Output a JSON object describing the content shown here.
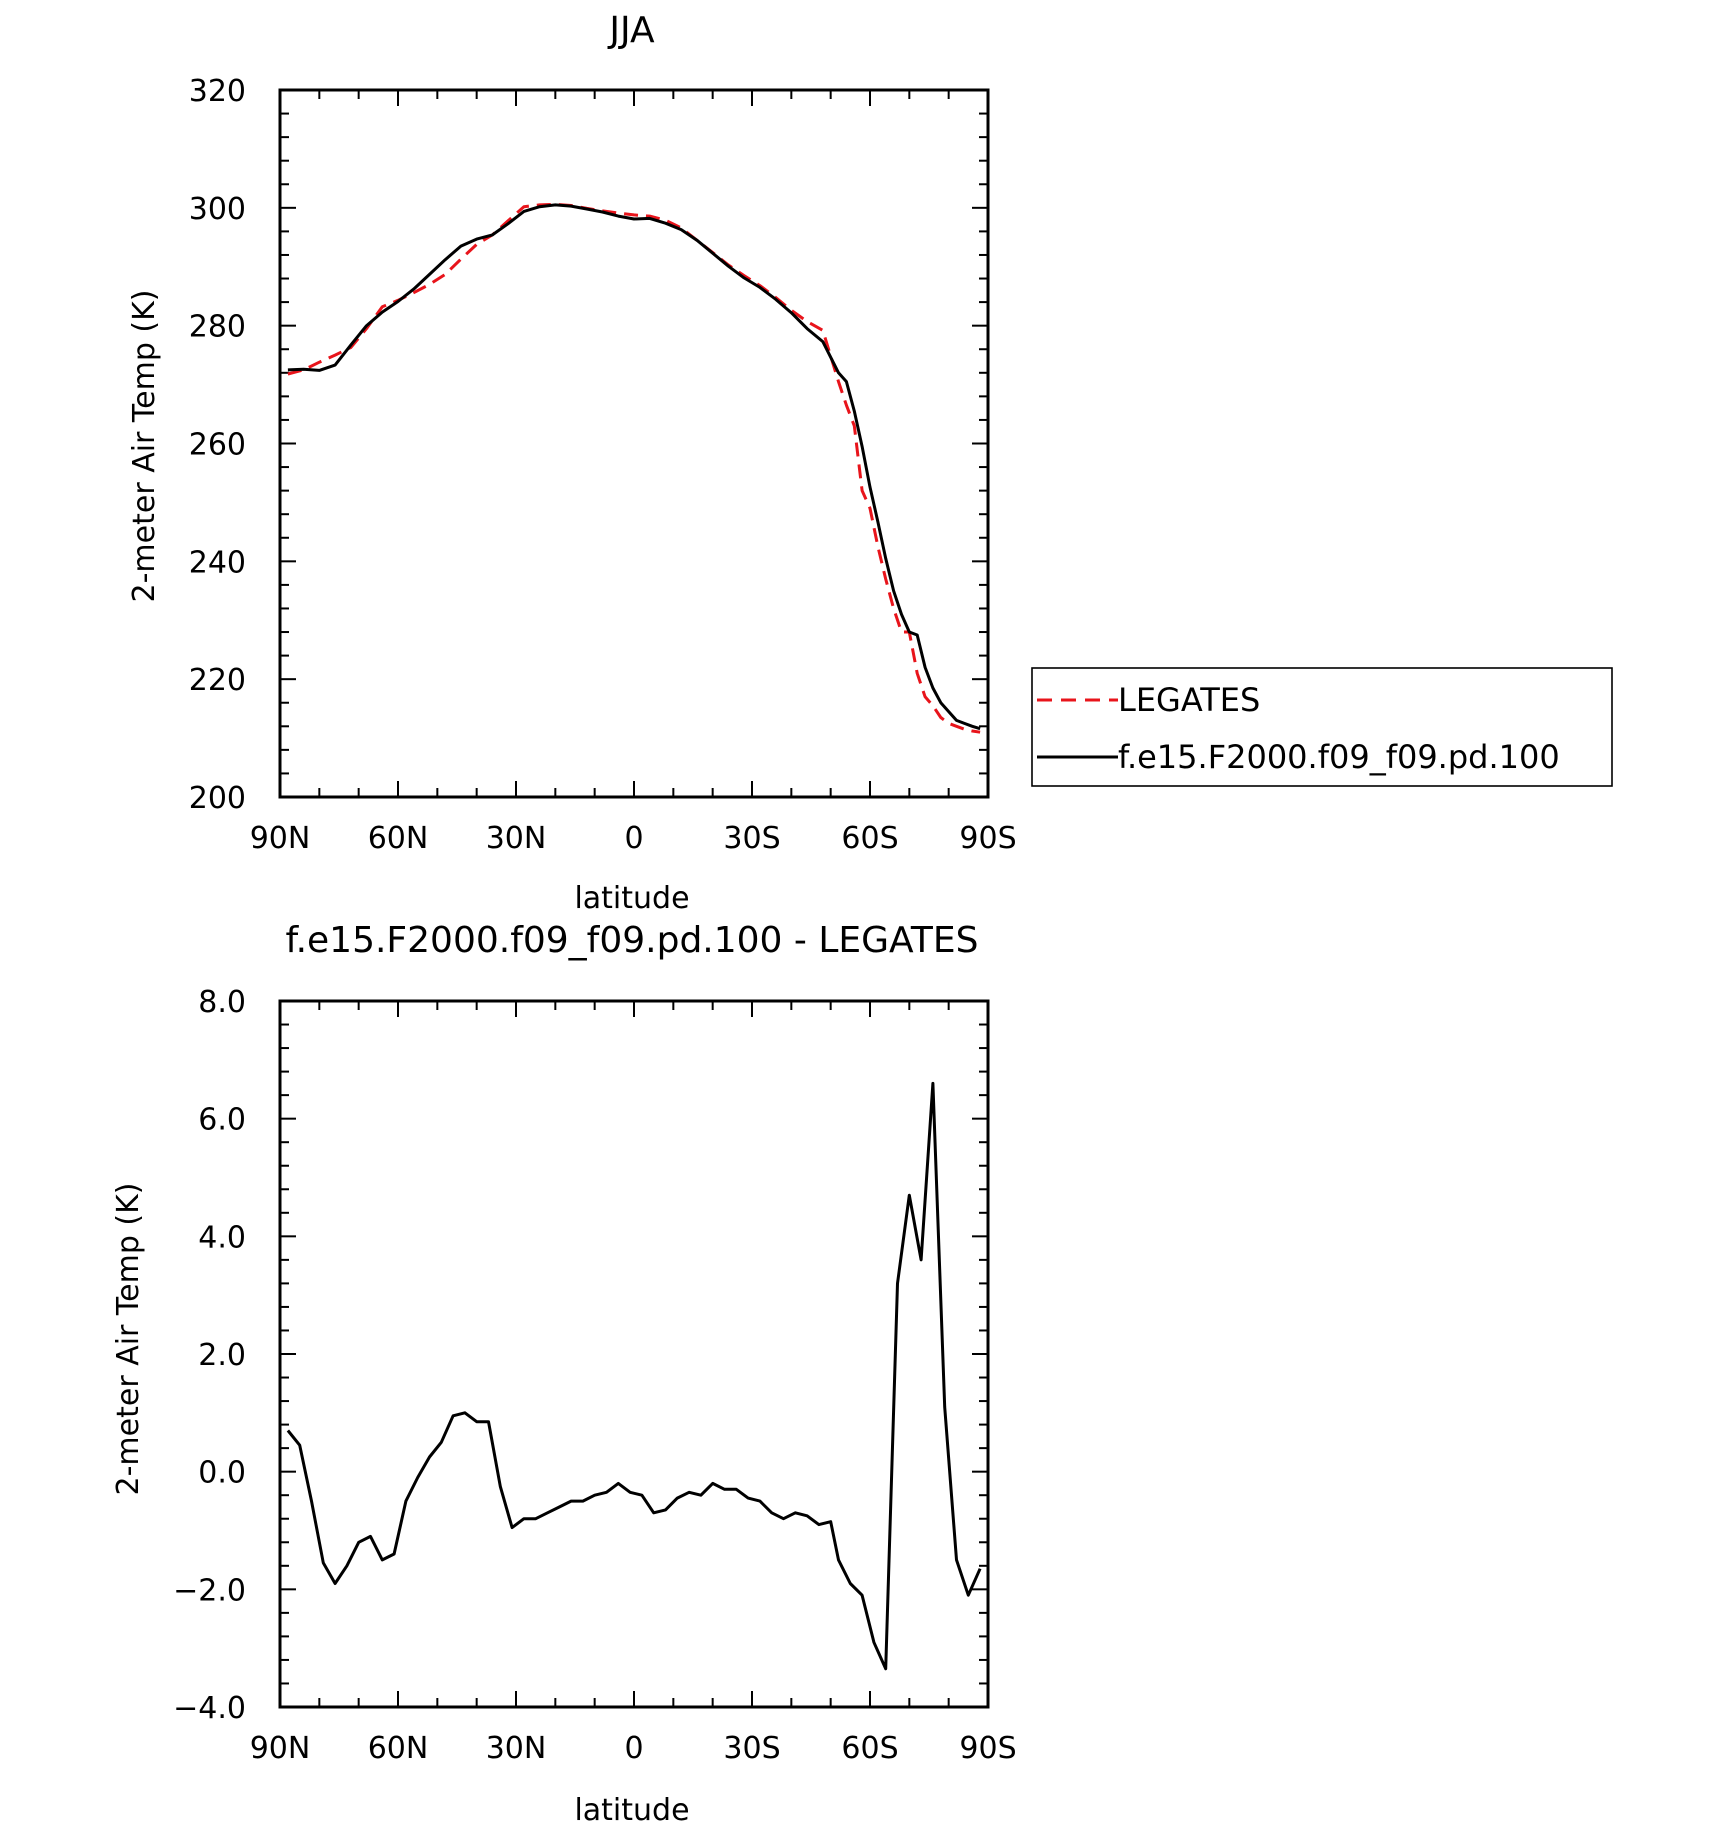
{
  "chart_data": [
    {
      "type": "line",
      "title": "JJA",
      "xlabel": "latitude",
      "ylabel": "2-meter Air Temp (K)",
      "xlim": [
        90,
        -90
      ],
      "ylim": [
        200,
        320
      ],
      "x_ticks": [
        90,
        60,
        30,
        0,
        -30,
        -60,
        -90
      ],
      "x_tick_labels": [
        "90N",
        "60N",
        "30N",
        "0",
        "30S",
        "60S",
        "90S"
      ],
      "y_ticks": [
        200,
        220,
        240,
        260,
        280,
        300,
        320
      ],
      "y_tick_labels": [
        "200",
        "220",
        "240",
        "260",
        "280",
        "300",
        "320"
      ],
      "legend_position": "right",
      "series": [
        {
          "name": "LEGATES",
          "color": "#e8141b",
          "dash": "dashed",
          "x": [
            88,
            84,
            80,
            76,
            72,
            68,
            64,
            60,
            56,
            52,
            48,
            44,
            40,
            36,
            32,
            28,
            24,
            20,
            16,
            12,
            8,
            4,
            0,
            -4,
            -8,
            -12,
            -16,
            -20,
            -24,
            -28,
            -32,
            -36,
            -40,
            -44,
            -48,
            -52,
            -54,
            -56,
            -58,
            -60,
            -62,
            -64,
            -66,
            -68,
            -70,
            -72,
            -74,
            -76,
            -78,
            -80,
            -82,
            -84,
            -86,
            -88
          ],
          "values": [
            271.8,
            272.5,
            273.8,
            275,
            276.3,
            279.5,
            283.2,
            284.3,
            285.6,
            287,
            288.7,
            291.3,
            293.8,
            295.4,
            297.8,
            300.2,
            300.5,
            300.6,
            300.4,
            299.9,
            299.5,
            299.1,
            298.8,
            298.6,
            297.9,
            296.6,
            294.5,
            292.4,
            290.3,
            288.5,
            286.8,
            284.8,
            282.6,
            280.7,
            279.2,
            270.5,
            266.5,
            263,
            252,
            249,
            242.5,
            237,
            232,
            228,
            228,
            221,
            217,
            215.5,
            213.5,
            212.5,
            212,
            211.5,
            211.2,
            211
          ]
        },
        {
          "name": "f.e15.F2000.f09_f09.pd.100",
          "color": "#000000",
          "dash": "solid",
          "x": [
            88,
            84,
            80,
            76,
            72,
            68,
            64,
            60,
            56,
            52,
            48,
            44,
            40,
            36,
            32,
            28,
            24,
            20,
            16,
            12,
            8,
            4,
            0,
            -4,
            -8,
            -12,
            -16,
            -20,
            -24,
            -28,
            -32,
            -36,
            -40,
            -44,
            -48,
            -52,
            -54,
            -56,
            -58,
            -60,
            -62,
            -64,
            -66,
            -68,
            -70,
            -72,
            -74,
            -76,
            -78,
            -80,
            -82,
            -84,
            -86,
            -88
          ],
          "values": [
            272.5,
            272.6,
            272.4,
            273.3,
            276.7,
            280,
            282.3,
            284.1,
            286.2,
            288.7,
            291.2,
            293.5,
            294.7,
            295.4,
            297.3,
            299.4,
            300.2,
            300.5,
            300.3,
            299.8,
            299.3,
            298.6,
            298.1,
            298.2,
            297.4,
            296.3,
            294.5,
            292.3,
            290.1,
            288.1,
            286.5,
            284.5,
            282.2,
            279.5,
            277.3,
            272,
            270.5,
            265.5,
            259.5,
            252.6,
            246.7,
            240.5,
            235,
            231,
            228,
            227.5,
            222,
            218.5,
            216,
            214.5,
            213,
            212.5,
            212,
            211.6
          ]
        }
      ]
    },
    {
      "type": "line",
      "title": "f.e15.F2000.f09_f09.pd.100 - LEGATES",
      "xlabel": "latitude",
      "ylabel": "2-meter Air Temp (K)",
      "xlim": [
        90,
        -90
      ],
      "ylim": [
        -4,
        8
      ],
      "x_ticks": [
        90,
        60,
        30,
        0,
        -30,
        -60,
        -90
      ],
      "x_tick_labels": [
        "90N",
        "60N",
        "30N",
        "0",
        "30S",
        "60S",
        "90S"
      ],
      "y_ticks": [
        -4,
        -2,
        0,
        2,
        4,
        6,
        8
      ],
      "y_tick_labels": [
        "−4.0",
        "−2.0",
        "0.0",
        "2.0",
        "4.0",
        "6.0",
        "8.0"
      ],
      "series": [
        {
          "color": "#000000",
          "dash": "solid",
          "x": [
            88,
            85,
            82,
            79,
            76,
            73,
            70,
            67,
            64,
            61,
            58,
            55,
            52,
            49,
            46,
            43,
            40,
            37,
            34,
            31,
            28,
            25,
            22,
            19,
            16,
            13,
            10,
            7,
            4,
            1,
            -2,
            -5,
            -8,
            -11,
            -14,
            -17,
            -20,
            -23,
            -26,
            -29,
            -32,
            -35,
            -38,
            -41,
            -44,
            -47,
            -50,
            -52,
            -55,
            -58,
            -61,
            -64,
            -67,
            -70,
            -73,
            -76,
            -79,
            -82,
            -85,
            -88
          ],
          "values": [
            0.7,
            0.45,
            -0.5,
            -1.55,
            -1.9,
            -1.6,
            -1.2,
            -1.1,
            -1.5,
            -1.4,
            -0.5,
            -0.1,
            0.25,
            0.5,
            0.95,
            1.0,
            0.85,
            0.85,
            -0.25,
            -0.95,
            -0.8,
            -0.8,
            -0.7,
            -0.6,
            -0.5,
            -0.5,
            -0.4,
            -0.35,
            -0.2,
            -0.35,
            -0.4,
            -0.7,
            -0.65,
            -0.45,
            -0.35,
            -0.4,
            -0.2,
            -0.3,
            -0.3,
            -0.45,
            -0.5,
            -0.7,
            -0.8,
            -0.7,
            -0.75,
            -0.9,
            -0.85,
            -1.5,
            -1.9,
            -2.1,
            -2.9,
            -3.35,
            3.2,
            4.7,
            3.6,
            6.6,
            1.1,
            -1.5,
            -2.1,
            -1.65
          ]
        }
      ]
    }
  ]
}
